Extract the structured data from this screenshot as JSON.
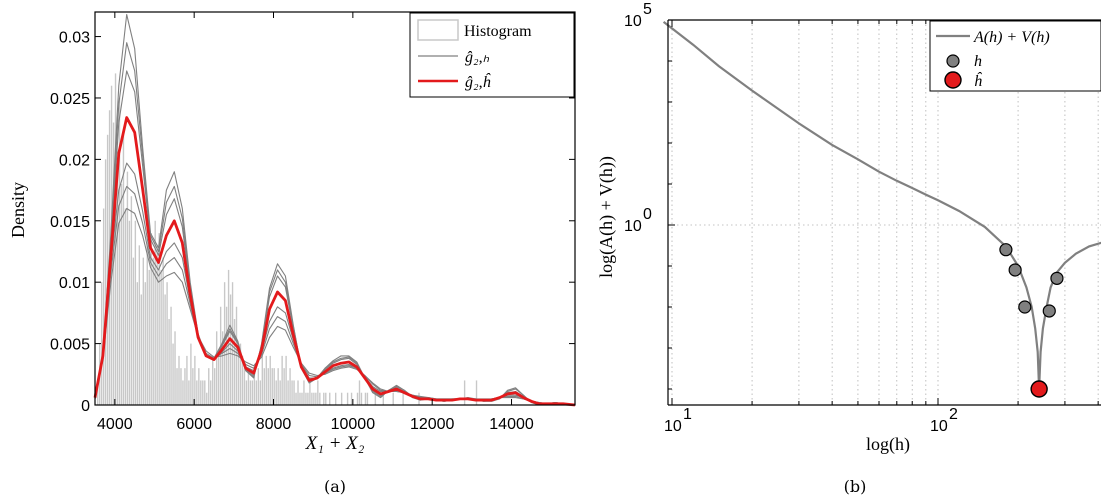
{
  "chart_data": [
    {
      "type": "line",
      "panel_label": "(a)",
      "xlabel": "X₁ + X₂",
      "ylabel": "Density",
      "xlim": [
        3500,
        15600
      ],
      "ylim": [
        0,
        0.032
      ],
      "xticks": [
        4000,
        6000,
        8000,
        10000,
        12000,
        14000
      ],
      "xtick_labels": [
        "4000",
        "6000",
        "8000",
        "10000",
        "12000",
        "14000"
      ],
      "yticks": [
        0,
        0.005,
        0.01,
        0.015,
        0.02,
        0.025,
        0.03
      ],
      "ytick_labels": [
        "0",
        "0.005",
        "0.01",
        "0.015",
        "0.02",
        "0.025",
        "0.03"
      ],
      "grid": false,
      "legend_position": "top-right",
      "legend": [
        "Histogram",
        "ĝ₂,ₕ",
        "ĝ₂,ĥ"
      ],
      "colors": {
        "histogram": "#c8c8c8",
        "candidates": "#808080",
        "selected": "#e31a1c"
      },
      "histogram": {
        "bin_start": 3500,
        "bin_width": 50,
        "heights": [
          0.0,
          0.002,
          0.005,
          0.01,
          0.016,
          0.02,
          0.022,
          0.024,
          0.026,
          0.023,
          0.027,
          0.02,
          0.025,
          0.018,
          0.022,
          0.016,
          0.019,
          0.015,
          0.017,
          0.012,
          0.015,
          0.01,
          0.013,
          0.009,
          0.012,
          0.01,
          0.013,
          0.011,
          0.014,
          0.012,
          0.015,
          0.013,
          0.014,
          0.011,
          0.012,
          0.009,
          0.01,
          0.007,
          0.008,
          0.005,
          0.006,
          0.003,
          0.004,
          0.003,
          0.002,
          0.003,
          0.004,
          0.002,
          0.005,
          0.003,
          0.004,
          0.002,
          0.003,
          0.002,
          0.002,
          0.002,
          0.001,
          0.003,
          0.002,
          0.004,
          0.003,
          0.006,
          0.004,
          0.008,
          0.006,
          0.01,
          0.008,
          0.011,
          0.009,
          0.01,
          0.007,
          0.008,
          0.005,
          0.005,
          0.004,
          0.003,
          0.002,
          0.003,
          0.002,
          0.002,
          0.003,
          0.002,
          0.003,
          0.002,
          0.004,
          0.003,
          0.004,
          0.003,
          0.004,
          0.003,
          0.003,
          0.002,
          0.003,
          0.002,
          0.004,
          0.003,
          0.004,
          0.002,
          0.003,
          0.002,
          0.002,
          0.001,
          0.002,
          0.001,
          0.001,
          0.002,
          0.001,
          0.001,
          0.002,
          0.001,
          0.001,
          0.001,
          0.002,
          0.001,
          0.0,
          0.001,
          0.001,
          0.0,
          0.001,
          0.0,
          0.0,
          0.001,
          0.0,
          0.0,
          0.001,
          0.0,
          0.0,
          0.001,
          0.0,
          0.001,
          0.0,
          0.0,
          0.001,
          0.002,
          0.001,
          0.0,
          0.001,
          0.001,
          0.0,
          0.0,
          0.0,
          0.001,
          0.0,
          0.0,
          0.0,
          0.001,
          0.0,
          0.0,
          0.0,
          0.0,
          0.001,
          0.0,
          0.0,
          0.0,
          0.0,
          0.001,
          0.0,
          0.0,
          0.0,
          0.0,
          0.0,
          0.0,
          0.0,
          0.001,
          0.0,
          0.0,
          0.0,
          0.0,
          0.0,
          0.0,
          0.0,
          0.0,
          0.0,
          0.0,
          0.0,
          0.0,
          0.0,
          0.0,
          0.0,
          0.0,
          0.0,
          0.0,
          0.0,
          0.0,
          0.0,
          0.0,
          0.002,
          0.0,
          0.0,
          0.0,
          0.0,
          0.0,
          0.002,
          0.0,
          0.0,
          0.0,
          0.0,
          0.0,
          0.0,
          0.0,
          0.0,
          0.0,
          0.0,
          0.0,
          0.0,
          0.0,
          0.0,
          0.0,
          0.0,
          0.0,
          0.0,
          0.0,
          0.0,
          0.0,
          0.0,
          0.0,
          0.0,
          0.0,
          0.0,
          0.0,
          0.0,
          0.0,
          0.0,
          0.0,
          0.0,
          0.0,
          0.0,
          0.0,
          0.0,
          0.0,
          0.0,
          0.0,
          0.0,
          0.0,
          0.0
        ]
      },
      "x": [
        3500,
        3700,
        3900,
        4100,
        4300,
        4500,
        4700,
        4900,
        5100,
        5300,
        5500,
        5700,
        5900,
        6100,
        6300,
        6500,
        6700,
        6900,
        7100,
        7300,
        7500,
        7700,
        7900,
        8100,
        8300,
        8500,
        8700,
        8900,
        9100,
        9300,
        9500,
        9700,
        9900,
        10100,
        10300,
        10500,
        10700,
        10900,
        11100,
        11300,
        11500,
        11700,
        11900,
        12100,
        12300,
        12500,
        12700,
        12900,
        13100,
        13300,
        13500,
        13700,
        13900,
        14100,
        14300,
        14500,
        14700,
        14900,
        15100,
        15300,
        15600
      ],
      "series": [
        {
          "role": "candidate",
          "values": [
            0.0005,
            0.004,
            0.014,
            0.026,
            0.0318,
            0.029,
            0.021,
            0.014,
            0.0128,
            0.0175,
            0.019,
            0.016,
            0.01,
            0.0058,
            0.004,
            0.0038,
            0.005,
            0.0065,
            0.0052,
            0.0028,
            0.0022,
            0.005,
            0.0095,
            0.0115,
            0.0105,
            0.0065,
            0.003,
            0.0018,
            0.0022,
            0.003,
            0.0036,
            0.004,
            0.004,
            0.0035,
            0.0022,
            0.001,
            0.0006,
            0.0012,
            0.0016,
            0.0012,
            0.0006,
            0.0004,
            0.0006,
            0.0004,
            0.0003,
            0.0004,
            0.0005,
            0.0006,
            0.0005,
            0.0003,
            0.0003,
            0.0005,
            0.0012,
            0.0014,
            0.0008,
            0.0002,
            0.0,
            0.0001,
            0.0002,
            0.0001,
            0.0
          ]
        },
        {
          "role": "candidate",
          "values": [
            0.0005,
            0.004,
            0.013,
            0.023,
            0.0272,
            0.0255,
            0.0195,
            0.0135,
            0.0122,
            0.0155,
            0.0168,
            0.0145,
            0.0095,
            0.0056,
            0.004,
            0.0037,
            0.0048,
            0.006,
            0.005,
            0.0029,
            0.0024,
            0.0048,
            0.0088,
            0.0105,
            0.0096,
            0.0062,
            0.0031,
            0.0019,
            0.0022,
            0.0029,
            0.0034,
            0.0037,
            0.0038,
            0.0033,
            0.0022,
            0.0012,
            0.0008,
            0.0012,
            0.0014,
            0.0011,
            0.0007,
            0.0005,
            0.0005,
            0.0004,
            0.0004,
            0.0004,
            0.0005,
            0.0005,
            0.0004,
            0.0004,
            0.0004,
            0.0006,
            0.001,
            0.0011,
            0.0007,
            0.0003,
            0.0001,
            0.0001,
            0.0002,
            0.0001,
            0.0
          ]
        },
        {
          "role": "candidate",
          "values": [
            0.0006,
            0.004,
            0.0115,
            0.0175,
            0.0197,
            0.0188,
            0.0158,
            0.012,
            0.011,
            0.0125,
            0.0132,
            0.012,
            0.0085,
            0.0054,
            0.004,
            0.0037,
            0.0043,
            0.005,
            0.0044,
            0.0031,
            0.0028,
            0.0043,
            0.0068,
            0.008,
            0.0075,
            0.0053,
            0.0032,
            0.0022,
            0.0022,
            0.0026,
            0.003,
            0.0032,
            0.0033,
            0.003,
            0.0023,
            0.0015,
            0.0011,
            0.0011,
            0.0012,
            0.001,
            0.0008,
            0.0006,
            0.0005,
            0.0005,
            0.0004,
            0.0005,
            0.0005,
            0.0005,
            0.0004,
            0.0004,
            0.0005,
            0.0006,
            0.0008,
            0.0008,
            0.0006,
            0.0003,
            0.0001,
            0.0001,
            0.0001,
            0.0001,
            0.0
          ]
        },
        {
          "role": "candidate",
          "values": [
            0.0006,
            0.0038,
            0.0108,
            0.0162,
            0.0178,
            0.0172,
            0.0148,
            0.0116,
            0.0105,
            0.0115,
            0.012,
            0.011,
            0.0082,
            0.0055,
            0.0042,
            0.0038,
            0.0042,
            0.0046,
            0.0042,
            0.0033,
            0.003,
            0.0041,
            0.0062,
            0.0072,
            0.0068,
            0.005,
            0.0033,
            0.0024,
            0.0023,
            0.0026,
            0.0029,
            0.0031,
            0.0032,
            0.003,
            0.0024,
            0.0017,
            0.0012,
            0.0011,
            0.0011,
            0.001,
            0.0008,
            0.0006,
            0.0006,
            0.0005,
            0.0005,
            0.0005,
            0.0005,
            0.0005,
            0.0005,
            0.0004,
            0.0005,
            0.0006,
            0.0007,
            0.0007,
            0.0005,
            0.0003,
            0.0002,
            0.0001,
            0.0001,
            0.0001,
            0.0
          ]
        },
        {
          "role": "candidate",
          "values": [
            0.0007,
            0.0037,
            0.01,
            0.0148,
            0.016,
            0.0156,
            0.0138,
            0.0112,
            0.01,
            0.0105,
            0.0108,
            0.01,
            0.0078,
            0.0056,
            0.0044,
            0.0039,
            0.004,
            0.0042,
            0.004,
            0.0035,
            0.0032,
            0.0039,
            0.0055,
            0.0064,
            0.0061,
            0.0047,
            0.0034,
            0.0026,
            0.0024,
            0.0025,
            0.0028,
            0.003,
            0.0031,
            0.0029,
            0.0024,
            0.0018,
            0.0013,
            0.0011,
            0.0011,
            0.001,
            0.0008,
            0.0007,
            0.0006,
            0.0005,
            0.0005,
            0.0005,
            0.0005,
            0.0005,
            0.0005,
            0.0005,
            0.0005,
            0.0006,
            0.0006,
            0.0006,
            0.0005,
            0.0003,
            0.0002,
            0.0001,
            0.0001,
            0.0001,
            0.0
          ]
        },
        {
          "role": "candidate",
          "values": [
            0.0005,
            0.004,
            0.0135,
            0.0245,
            0.0295,
            0.0272,
            0.0203,
            0.0138,
            0.0125,
            0.0165,
            0.0178,
            0.0152,
            0.0098,
            0.0057,
            0.004,
            0.0038,
            0.0049,
            0.0062,
            0.0051,
            0.0028,
            0.0023,
            0.0049,
            0.0092,
            0.011,
            0.01,
            0.0064,
            0.003,
            0.0018,
            0.0022,
            0.003,
            0.0035,
            0.0038,
            0.0039,
            0.0034,
            0.0022,
            0.0011,
            0.0007,
            0.0012,
            0.0015,
            0.0012,
            0.0007,
            0.0004,
            0.0005,
            0.0004,
            0.0003,
            0.0004,
            0.0005,
            0.0005,
            0.0004,
            0.0003,
            0.0004,
            0.0005,
            0.0011,
            0.0013,
            0.0008,
            0.0002,
            0.0,
            0.0001,
            0.0002,
            0.0001,
            0.0
          ]
        },
        {
          "role": "selected",
          "values": [
            0.0006,
            0.004,
            0.0122,
            0.0205,
            0.0234,
            0.0222,
            0.0176,
            0.0128,
            0.0116,
            0.0138,
            0.015,
            0.0132,
            0.009,
            0.0055,
            0.004,
            0.0037,
            0.0045,
            0.0054,
            0.0047,
            0.003,
            0.0026,
            0.0045,
            0.0078,
            0.0092,
            0.0085,
            0.0057,
            0.0031,
            0.002,
            0.0022,
            0.0027,
            0.0032,
            0.0034,
            0.0035,
            0.0031,
            0.0022,
            0.0013,
            0.0009,
            0.0011,
            0.0013,
            0.001,
            0.0007,
            0.0005,
            0.0005,
            0.0004,
            0.0004,
            0.0004,
            0.0005,
            0.0005,
            0.0004,
            0.0004,
            0.0004,
            0.0006,
            0.0009,
            0.001,
            0.0006,
            0.0003,
            0.0001,
            0.0001,
            0.0001,
            0.0001,
            0.0
          ]
        }
      ]
    },
    {
      "type": "line",
      "panel_label": "(b)",
      "xlabel": "log(h)",
      "ylabel": "log(A(h) + V(h))",
      "xscale": "log",
      "yscale": "log",
      "xlim": [
        9,
        1000
      ],
      "ylim": [
        0.0001,
        100000
      ],
      "xticks": [
        10,
        100
      ],
      "yticks": [
        1,
        100000
      ],
      "grid": "dotted vertical minor",
      "legend_position": "top-right",
      "legend": [
        "A(h) + V(h)",
        "h",
        "ĥ"
      ],
      "colors": {
        "curve": "#808080",
        "candidates": "#808080",
        "selected": "#e31a1c"
      },
      "curve": {
        "x": [
          9.3,
          12,
          15,
          20,
          30,
          40,
          50,
          60,
          70,
          80,
          90,
          100,
          120,
          150,
          180,
          200,
          215,
          225,
          232,
          237,
          240,
          243,
          248,
          256,
          265,
          280,
          300,
          330,
          370,
          430,
          500,
          600,
          750,
          1000
        ],
        "y": [
          90000,
          25000,
          7500,
          1900,
          300,
          90,
          40,
          20,
          12,
          8,
          5.5,
          4,
          2.2,
          0.9,
          0.3,
          0.1,
          0.03,
          0.01,
          0.003,
          0.0008,
          0.0001,
          0.0008,
          0.003,
          0.01,
          0.03,
          0.07,
          0.12,
          0.2,
          0.3,
          0.4,
          0.48,
          0.55,
          0.6,
          0.65
        ]
      },
      "candidates": [
        {
          "x": 180,
          "y": 0.25
        },
        {
          "x": 195,
          "y": 0.08
        },
        {
          "x": 212,
          "y": 0.01
        },
        {
          "x": 262,
          "y": 0.008
        },
        {
          "x": 280,
          "y": 0.05
        }
      ],
      "selected": {
        "x": 240,
        "y": 0.0001
      }
    }
  ]
}
